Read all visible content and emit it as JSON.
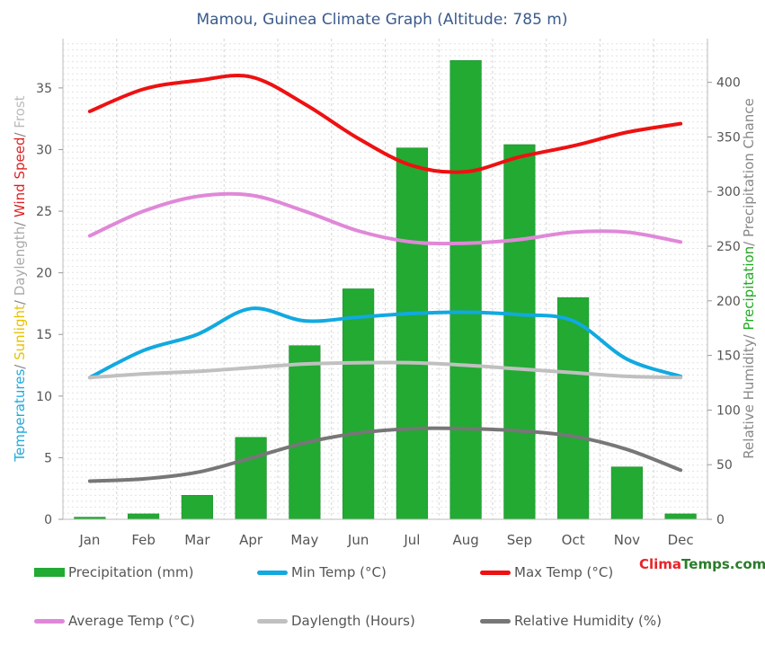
{
  "chart_data": {
    "type": "bar+line",
    "title": "Mamou, Guinea Climate Graph (Altitude: 785 m)",
    "categories": [
      "Jan",
      "Feb",
      "Mar",
      "Apr",
      "May",
      "Jun",
      "Jul",
      "Aug",
      "Sep",
      "Oct",
      "Nov",
      "Dec"
    ],
    "left_axis": {
      "ylim": [
        0,
        39
      ],
      "ticks": [
        0,
        5,
        10,
        15,
        20,
        25,
        30,
        35
      ],
      "label_parts": [
        {
          "text": "Temperatures",
          "color": "#22aadd"
        },
        {
          "text": "/ ",
          "color": "#888888"
        },
        {
          "text": "Sunlight",
          "color": "#e6c200"
        },
        {
          "text": "/ ",
          "color": "#888888"
        },
        {
          "text": "Daylength",
          "color": "#aaaaaa"
        },
        {
          "text": "/ ",
          "color": "#888888"
        },
        {
          "text": "Wind Speed",
          "color": "#dd2222"
        },
        {
          "text": "/ ",
          "color": "#888888"
        },
        {
          "text": "Frost",
          "color": "#bbbbbb"
        }
      ]
    },
    "right_axis": {
      "ylim": [
        0,
        440
      ],
      "ticks": [
        0,
        50,
        100,
        150,
        200,
        250,
        300,
        350,
        400
      ],
      "label_parts": [
        {
          "text": "Relative Humidity",
          "color": "#888888"
        },
        {
          "text": "/ ",
          "color": "#888888"
        },
        {
          "text": "Precipitation",
          "color": "#22aa22"
        },
        {
          "text": "/ ",
          "color": "#888888"
        },
        {
          "text": "Precipitation Chance",
          "color": "#888888"
        }
      ]
    },
    "grid": true,
    "series": [
      {
        "name": "Precipitation (mm)",
        "kind": "bar",
        "axis": "right",
        "color": "#22aa33",
        "values": [
          2,
          5,
          22,
          75,
          159,
          211,
          340,
          420,
          343,
          203,
          48,
          5
        ]
      },
      {
        "name": "Min Temp (°C)",
        "kind": "line",
        "axis": "left",
        "color": "#11a9e0",
        "values": [
          11.5,
          13.7,
          15.0,
          17.1,
          16.1,
          16.4,
          16.7,
          16.8,
          16.6,
          16.1,
          13.0,
          11.6
        ]
      },
      {
        "name": "Max Temp (°C)",
        "kind": "line",
        "axis": "left",
        "color": "#ee1111",
        "values": [
          33.1,
          34.9,
          35.6,
          35.9,
          33.7,
          30.9,
          28.7,
          28.2,
          29.4,
          30.3,
          31.4,
          32.1
        ]
      },
      {
        "name": "Average Temp (°C)",
        "kind": "line",
        "axis": "left",
        "color": "#e088d8",
        "values": [
          23.0,
          25.0,
          26.2,
          26.3,
          25.0,
          23.4,
          22.5,
          22.4,
          22.7,
          23.3,
          23.3,
          22.5
        ]
      },
      {
        "name": "Daylength (Hours)",
        "kind": "line",
        "axis": "left",
        "color": "#c0c0c0",
        "values": [
          11.5,
          11.8,
          12.0,
          12.3,
          12.6,
          12.7,
          12.7,
          12.5,
          12.2,
          11.9,
          11.6,
          11.5
        ]
      },
      {
        "name": "Relative Humidity (%)",
        "kind": "line",
        "axis": "right",
        "color": "#777777",
        "values": [
          35,
          37,
          43,
          56,
          70,
          79,
          83,
          83,
          81,
          76,
          64,
          45
        ]
      }
    ]
  },
  "brand": {
    "part1": "Clima",
    "part2": "Temps.com"
  }
}
